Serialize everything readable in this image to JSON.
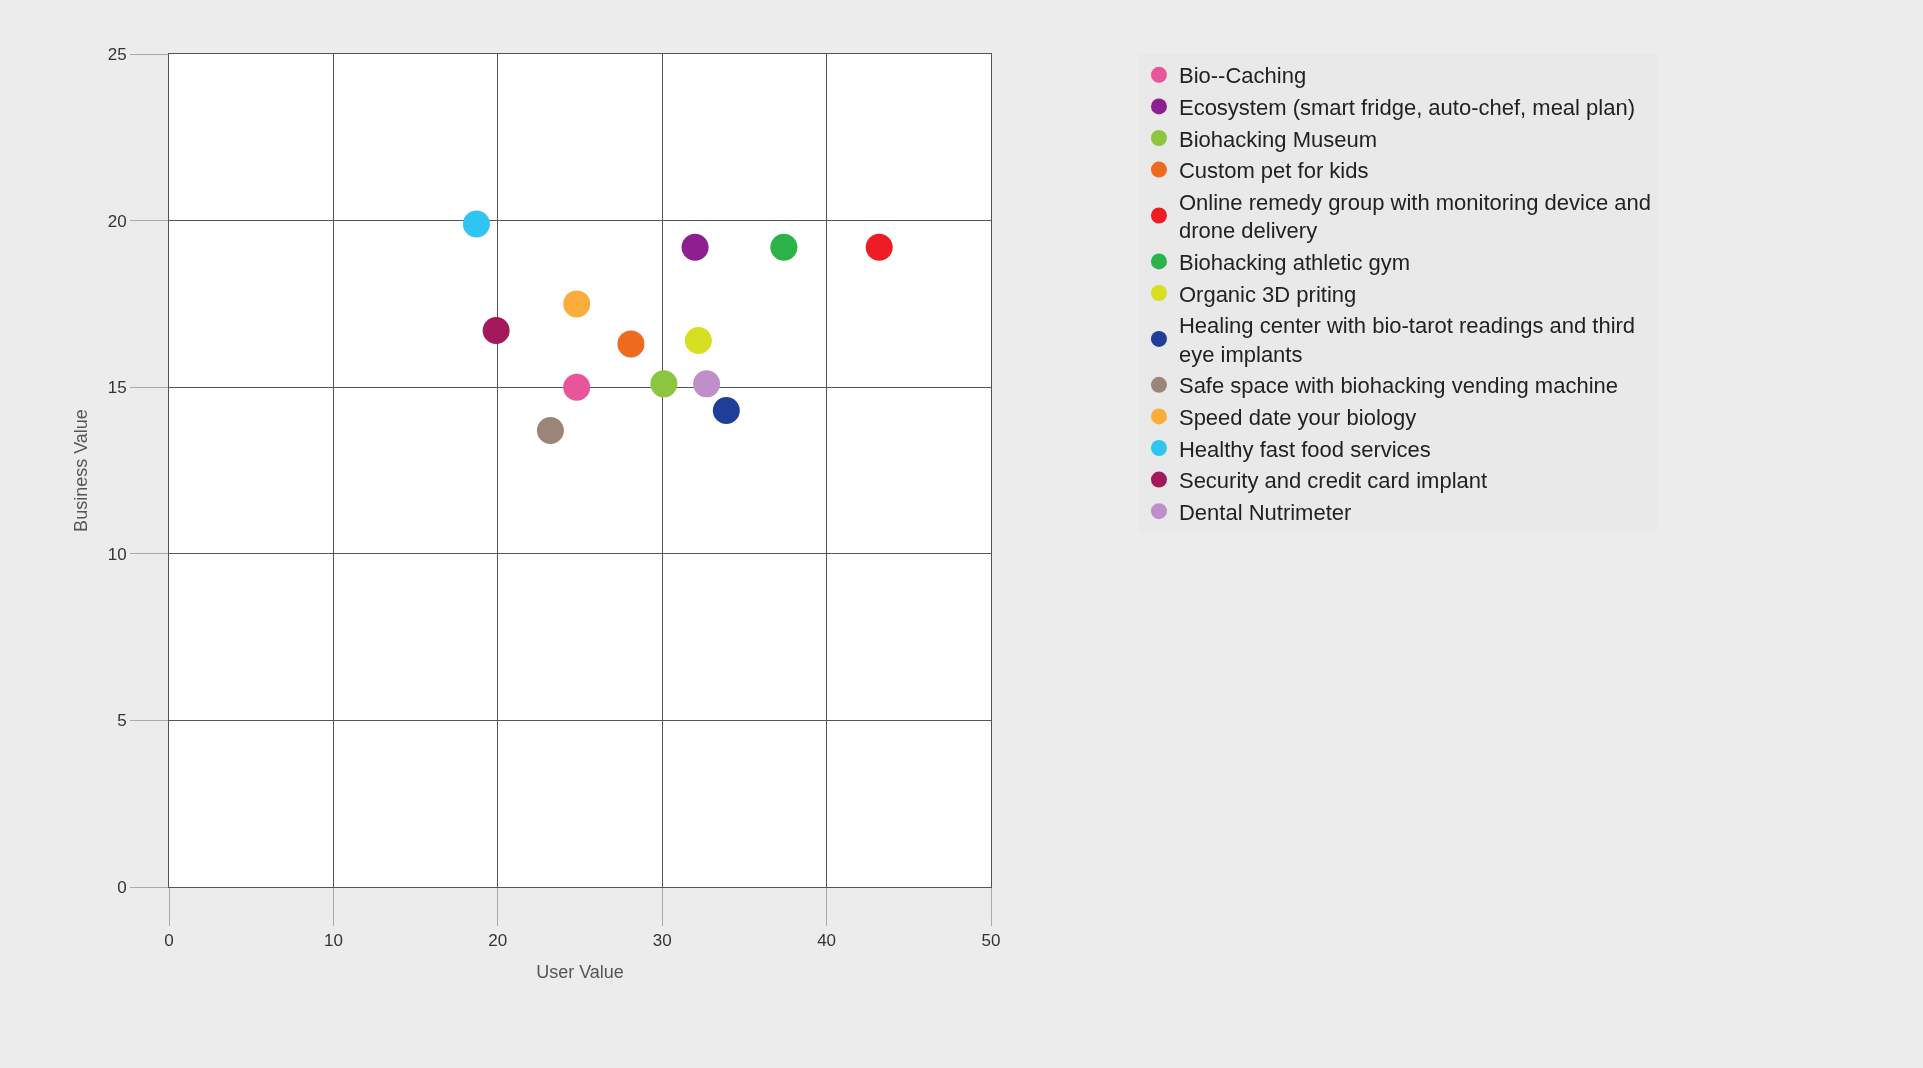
{
  "chart_data": {
    "type": "scatter",
    "xlabel": "User Value",
    "ylabel": "Business Value",
    "xlim": [
      0,
      50
    ],
    "xticks": [
      0,
      10,
      20,
      30,
      40,
      50
    ],
    "ylim": [
      0,
      25
    ],
    "yticks": [
      0,
      5,
      10,
      15,
      20,
      25
    ],
    "grid": true,
    "legend": "right",
    "marker": "circle",
    "series": [
      {
        "name": "Bio--Caching",
        "color": "#e8559b",
        "x": [
          24.8
        ],
        "values": [
          15.0
        ]
      },
      {
        "name": "Ecosystem (smart fridge, auto-chef, meal plan)",
        "color": "#8e1f8f",
        "x": [
          32.0
        ],
        "values": [
          19.2
        ]
      },
      {
        "name": "Biohacking Museum",
        "color": "#8cc63f",
        "x": [
          30.1
        ],
        "values": [
          15.1
        ]
      },
      {
        "name": "Custom pet for kids",
        "color": "#ee6a1f",
        "x": [
          28.1
        ],
        "values": [
          16.3
        ]
      },
      {
        "name": "Online remedy group with monitoring device and drone delivery",
        "color": "#ee1c25",
        "x": [
          43.2
        ],
        "values": [
          19.2
        ]
      },
      {
        "name": "Biohacking athletic gym",
        "color": "#2bb34a",
        "x": [
          37.4
        ],
        "values": [
          19.2
        ]
      },
      {
        "name": "Organic 3D priting",
        "color": "#d7df23",
        "x": [
          32.2
        ],
        "values": [
          16.4
        ]
      },
      {
        "name": "Healing center with bio-tarot readings and third eye implants",
        "color": "#1f3e97",
        "x": [
          33.9
        ],
        "values": [
          14.3
        ]
      },
      {
        "name": "Safe space with biohacking vending machine",
        "color": "#9b8579",
        "x": [
          23.2
        ],
        "values": [
          13.7
        ]
      },
      {
        "name": "Speed date your biology",
        "color": "#fbad3b",
        "x": [
          24.8
        ],
        "values": [
          17.5
        ]
      },
      {
        "name": "Healthy fast food services",
        "color": "#2fc4f1",
        "x": [
          18.7
        ],
        "values": [
          19.9
        ]
      },
      {
        "name": "Security and credit card implant",
        "color": "#a3195b",
        "x": [
          19.9
        ],
        "values": [
          16.7
        ]
      },
      {
        "name": "Dental Nutrimeter",
        "color": "#bf8fc9",
        "x": [
          32.7
        ],
        "values": [
          15.1
        ]
      }
    ]
  }
}
